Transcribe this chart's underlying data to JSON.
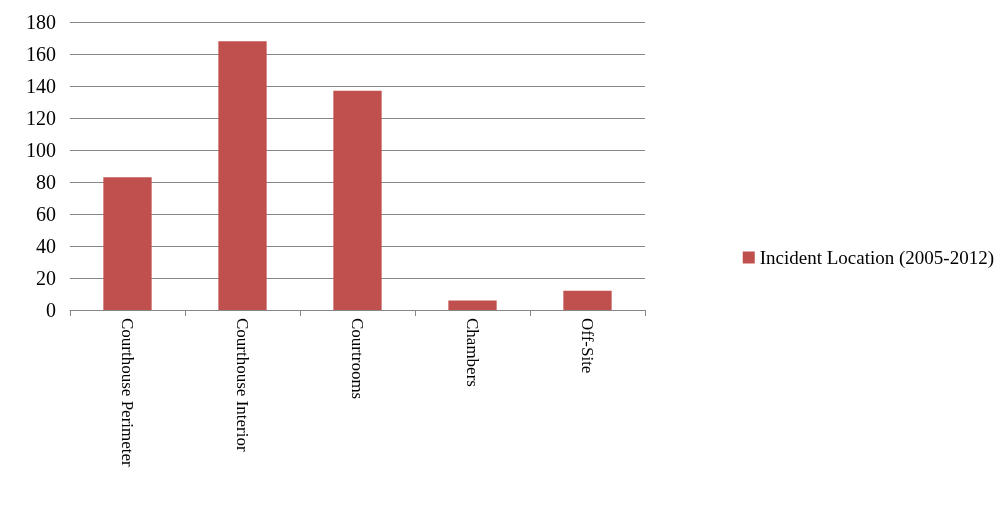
{
  "chart_data": {
    "type": "bar",
    "categories": [
      "Courthouse Perimeter",
      "Courthouse Interior",
      "Courtrooms",
      "Chambers",
      "Off-Site"
    ],
    "series": [
      {
        "name": "Incident Location (2005-2012)",
        "color": "#c0504d",
        "values": [
          83,
          168,
          137,
          6,
          12
        ]
      }
    ],
    "ylim": [
      0,
      180
    ],
    "yticks": [
      0,
      20,
      40,
      60,
      80,
      100,
      120,
      140,
      160,
      180
    ],
    "grid": "y",
    "legend": "right"
  }
}
